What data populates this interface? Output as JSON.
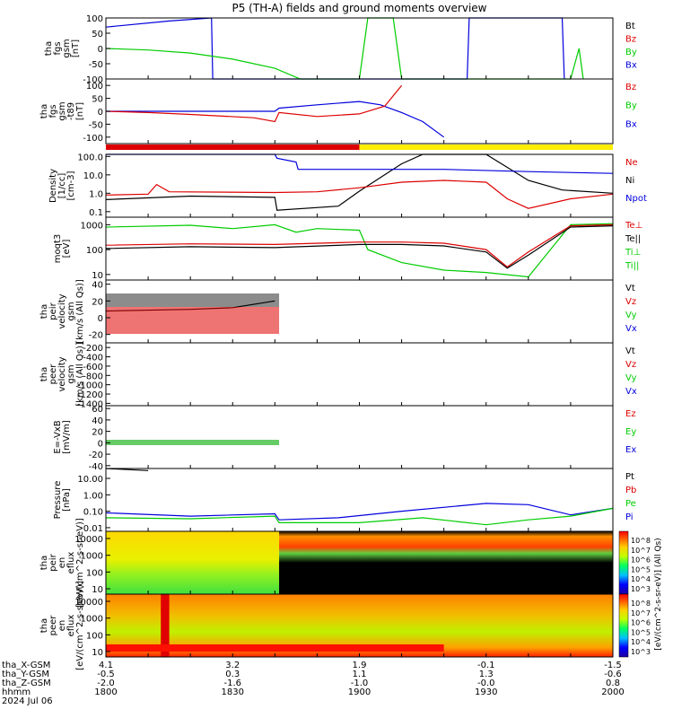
{
  "chart_data": {
    "type": "line",
    "title": "P5 (TH-A) fields and ground moments overview",
    "panels": [
      {
        "id": "fgs",
        "ylabel": [
          "tha",
          "fgs",
          "gsm",
          "[nT]"
        ],
        "yticks": [
          "100",
          "50",
          "0",
          "-50",
          "-100"
        ],
        "ylim": [
          -100,
          100
        ],
        "legend": [
          {
            "t": "Bt",
            "c": "#000000"
          },
          {
            "t": "Bz",
            "c": "#dd0000"
          },
          {
            "t": "By",
            "c": "#00cc00"
          },
          {
            "t": "Bx",
            "c": "#0000dd"
          }
        ]
      },
      {
        "id": "fgs-t89",
        "ylabel": [
          "tha",
          "fgs",
          "gsm",
          "-t89",
          "[nT]"
        ],
        "yticks": [
          "100",
          "50",
          "0",
          "-50",
          "-100"
        ],
        "ylim": [
          -125,
          125
        ],
        "legend": [
          {
            "t": "Bz",
            "c": "#dd0000"
          },
          {
            "t": "By",
            "c": "#00cc00"
          },
          {
            "t": "Bx",
            "c": "#0000dd"
          }
        ]
      },
      {
        "id": "density",
        "ylabel": [
          "Density",
          "[1/cc]",
          "[cm-3]"
        ],
        "yticks": [
          "100.0",
          "10.0",
          "1.0",
          "0.1"
        ],
        "log": true,
        "ylim": [
          0.05,
          130
        ],
        "legend": [
          {
            "t": "Ne",
            "c": "#dd0000"
          },
          {
            "t": "Ni",
            "c": "#000000"
          },
          {
            "t": "Npot",
            "c": "#0000dd"
          }
        ]
      },
      {
        "id": "temp",
        "ylabel": [
          "moqt3",
          "[eV]"
        ],
        "yticks": [
          "1000",
          "100",
          "10"
        ],
        "log": true,
        "ylim": [
          6,
          2000
        ],
        "legend": [
          {
            "t": "Te⊥",
            "c": "#dd0000"
          },
          {
            "t": "Te||",
            "c": "#000000"
          },
          {
            "t": "Ti⊥",
            "c": "#00cc00"
          },
          {
            "t": "Ti||",
            "c": "#00cc00"
          }
        ]
      },
      {
        "id": "peir-vel",
        "ylabel": [
          "tha",
          "peir",
          "velocity",
          "gsm",
          "[km/s (All Qs)]"
        ],
        "yticks": [
          "40",
          "20",
          "0",
          "-20"
        ],
        "ylim": [
          -30,
          45
        ],
        "legend": [
          {
            "t": "Vt",
            "c": "#000000"
          },
          {
            "t": "Vz",
            "c": "#dd0000"
          },
          {
            "t": "Vy",
            "c": "#00cc00"
          },
          {
            "t": "Vx",
            "c": "#0000dd"
          }
        ]
      },
      {
        "id": "peer-vel",
        "ylabel": [
          "tha",
          "peer",
          "velocity",
          "gsm",
          "[km/s (All Qs)]"
        ],
        "yticks": [
          "-200",
          "-400",
          "-600",
          "-800",
          "-1000",
          "-1200",
          "-1400"
        ],
        "ylim": [
          -1450,
          -100
        ],
        "legend": [
          {
            "t": "Vt",
            "c": "#000000"
          },
          {
            "t": "Vz",
            "c": "#dd0000"
          },
          {
            "t": "Vy",
            "c": "#00cc00"
          },
          {
            "t": "Vx",
            "c": "#0000dd"
          }
        ]
      },
      {
        "id": "efield",
        "ylabel": [
          "E=-VxB",
          "[mV/m]"
        ],
        "yticks": [
          "60",
          "40",
          "20",
          "0",
          "-20",
          "-40"
        ],
        "ylim": [
          -45,
          65
        ],
        "legend": [
          {
            "t": "Ez",
            "c": "#dd0000"
          },
          {
            "t": "Ey",
            "c": "#00cc00"
          },
          {
            "t": "Ex",
            "c": "#0000dd"
          }
        ]
      },
      {
        "id": "pressure",
        "ylabel": [
          "Pressure",
          "[nPa]"
        ],
        "yticks": [
          "10.00",
          "1.00",
          "0.10",
          "0.01"
        ],
        "log": true,
        "ylim": [
          0.006,
          40
        ],
        "legend": [
          {
            "t": "Pt",
            "c": "#000000"
          },
          {
            "t": "Pb",
            "c": "#dd0000"
          },
          {
            "t": "Pe",
            "c": "#00cc00"
          },
          {
            "t": "Pi",
            "c": "#0000dd"
          }
        ]
      },
      {
        "id": "peir-spec",
        "ylabel": [
          "tha",
          "peir",
          "en",
          "eflux",
          "[eV/(cm^2-s-sr-eV)]"
        ],
        "yticks": [
          "10000",
          "1000",
          "100",
          "10"
        ]
      },
      {
        "id": "peer-spec",
        "ylabel": [
          "tha",
          "peer",
          "en",
          "eflux",
          "[eV/(cm^2-s-sr-eV)]"
        ],
        "yticks": [
          "10000",
          "1000",
          "100",
          "10"
        ]
      }
    ],
    "colorbar": {
      "label": "[eV/(cm^2-s-sr-eV)] (All Qs)",
      "ticks_upper": [
        "10^8",
        "10^7",
        "10^6",
        "10^5",
        "10^4",
        "10^3"
      ],
      "ticks_lower": [
        "10^8",
        "10^7",
        "10^6",
        "10^5",
        "10^4",
        "10^3"
      ]
    },
    "time_axis": {
      "start": "18:00",
      "end": "20:00",
      "rows": [
        {
          "label": "tha_X-GSM",
          "values": [
            "4.1",
            "3.2",
            "1.9",
            "-0.1",
            "-1.5"
          ]
        },
        {
          "label": "tha_Y-GSM",
          "values": [
            "-0.5",
            "0.3",
            "1.1",
            "1.3",
            "-0.6"
          ]
        },
        {
          "label": "tha_Z-GSM",
          "values": [
            "-2.0",
            "-1.6",
            "-1.0",
            "-0.0",
            "0.8"
          ]
        },
        {
          "label": "hhmm",
          "values": [
            "1800",
            "1830",
            "1900",
            "1930",
            "2000"
          ]
        }
      ],
      "date": "2024 Jul 06"
    },
    "mode_bar": [
      {
        "from": "1800",
        "to": "1900",
        "color": "#dd0000"
      },
      {
        "from": "1900",
        "to": "2000",
        "color": "#ffee00"
      }
    ],
    "series": [
      {
        "panel": "fgs",
        "name": "Bx",
        "values": [
          [
            0,
            70
          ],
          [
            15,
            90
          ],
          [
            25,
            102
          ],
          [
            25.3,
            -100
          ],
          [
            80,
            -100
          ],
          [
            85.5,
            -100
          ],
          [
            86,
            100
          ],
          [
            108,
            100
          ],
          [
            108.5,
            -100
          ]
        ]
      },
      {
        "panel": "fgs",
        "name": "By",
        "values": [
          [
            0,
            0
          ],
          [
            10,
            -5
          ],
          [
            20,
            -15
          ],
          [
            30,
            -35
          ],
          [
            40,
            -65
          ],
          [
            46,
            -100
          ],
          [
            60,
            -100
          ],
          [
            62,
            100
          ],
          [
            68,
            100
          ],
          [
            70,
            -100
          ],
          [
            110,
            -100
          ],
          [
            112,
            0
          ],
          [
            113,
            -100
          ]
        ]
      },
      {
        "panel": "fgs-t89",
        "name": "Bx",
        "values": [
          [
            0,
            0
          ],
          [
            10,
            0
          ],
          [
            30,
            0
          ],
          [
            40,
            0
          ],
          [
            41,
            12
          ],
          [
            50,
            25
          ],
          [
            60,
            38
          ],
          [
            65,
            25
          ],
          [
            70,
            -5
          ],
          [
            75,
            -40
          ],
          [
            80,
            -100
          ]
        ]
      },
      {
        "panel": "fgs-t89",
        "name": "Bz",
        "values": [
          [
            0,
            0
          ],
          [
            10,
            -5
          ],
          [
            20,
            -12
          ],
          [
            35,
            -25
          ],
          [
            40,
            -40
          ],
          [
            41,
            -5
          ],
          [
            50,
            -20
          ],
          [
            60,
            -10
          ],
          [
            66,
            20
          ],
          [
            68,
            60
          ],
          [
            70,
            100
          ]
        ]
      },
      {
        "panel": "density",
        "name": "Ni",
        "values": [
          [
            0,
            0.45
          ],
          [
            20,
            0.7
          ],
          [
            40,
            0.6
          ],
          [
            40.5,
            0.12
          ],
          [
            55,
            0.2
          ],
          [
            60,
            1.3
          ],
          [
            70,
            40
          ],
          [
            75,
            150
          ],
          [
            90,
            150
          ],
          [
            100,
            5
          ],
          [
            108,
            1.5
          ],
          [
            120,
            1
          ]
        ]
      },
      {
        "panel": "density",
        "name": "Ne",
        "values": [
          [
            0,
            0.8
          ],
          [
            10,
            0.9
          ],
          [
            12,
            3
          ],
          [
            15,
            1.2
          ],
          [
            40,
            1.1
          ],
          [
            50,
            1.2
          ],
          [
            60,
            2
          ],
          [
            70,
            4
          ],
          [
            80,
            5
          ],
          [
            90,
            4
          ],
          [
            95,
            0.5
          ],
          [
            100,
            0.15
          ],
          [
            110,
            0.5
          ],
          [
            120,
            0.9
          ]
        ]
      },
      {
        "panel": "density",
        "name": "Npot",
        "values": [
          [
            0,
            200
          ],
          [
            40,
            200
          ],
          [
            40.5,
            80
          ],
          [
            45,
            50
          ],
          [
            45.5,
            20
          ],
          [
            80,
            20
          ],
          [
            100,
            15
          ],
          [
            120,
            12
          ]
        ]
      },
      {
        "panel": "temp",
        "name": "Ti||",
        "values": [
          [
            0,
            800
          ],
          [
            20,
            950
          ],
          [
            30,
            700
          ],
          [
            40,
            1000
          ],
          [
            45,
            500
          ],
          [
            50,
            700
          ],
          [
            60,
            600
          ],
          [
            62,
            100
          ],
          [
            70,
            30
          ],
          [
            80,
            15
          ],
          [
            90,
            12
          ],
          [
            100,
            8
          ],
          [
            110,
            1000
          ],
          [
            120,
            1100
          ]
        ]
      },
      {
        "panel": "temp",
        "name": "Te⊥",
        "values": [
          [
            0,
            150
          ],
          [
            20,
            170
          ],
          [
            40,
            160
          ],
          [
            60,
            200
          ],
          [
            70,
            200
          ],
          [
            80,
            180
          ],
          [
            90,
            100
          ],
          [
            95,
            20
          ],
          [
            100,
            80
          ],
          [
            110,
            900
          ],
          [
            120,
            1000
          ]
        ]
      },
      {
        "panel": "temp",
        "name": "Te||",
        "values": [
          [
            0,
            110
          ],
          [
            20,
            130
          ],
          [
            40,
            120
          ],
          [
            60,
            160
          ],
          [
            70,
            160
          ],
          [
            80,
            140
          ],
          [
            90,
            80
          ],
          [
            95,
            18
          ],
          [
            100,
            60
          ],
          [
            110,
            800
          ],
          [
            120,
            900
          ]
        ]
      },
      {
        "panel": "peir-vel",
        "name": "Vt",
        "values": [
          [
            0,
            8
          ],
          [
            20,
            10
          ],
          [
            30,
            12
          ],
          [
            40,
            20
          ]
        ]
      },
      {
        "panel": "pressure",
        "name": "Pi",
        "values": [
          [
            0,
            0.08
          ],
          [
            20,
            0.05
          ],
          [
            40,
            0.07
          ],
          [
            41,
            0.03
          ],
          [
            55,
            0.04
          ],
          [
            70,
            0.1
          ],
          [
            90,
            0.3
          ],
          [
            100,
            0.25
          ],
          [
            110,
            0.06
          ],
          [
            120,
            0.15
          ]
        ]
      },
      {
        "panel": "pressure",
        "name": "Pe",
        "values": [
          [
            0,
            0.04
          ],
          [
            20,
            0.035
          ],
          [
            40,
            0.05
          ],
          [
            41,
            0.02
          ],
          [
            60,
            0.02
          ],
          [
            75,
            0.04
          ],
          [
            90,
            0.015
          ],
          [
            100,
            0.03
          ],
          [
            110,
            0.05
          ],
          [
            120,
            0.15
          ]
        ]
      },
      {
        "panel": "pressure",
        "name": "Pt",
        "values": [
          [
            0,
            40
          ],
          [
            10,
            30
          ]
        ]
      }
    ]
  }
}
